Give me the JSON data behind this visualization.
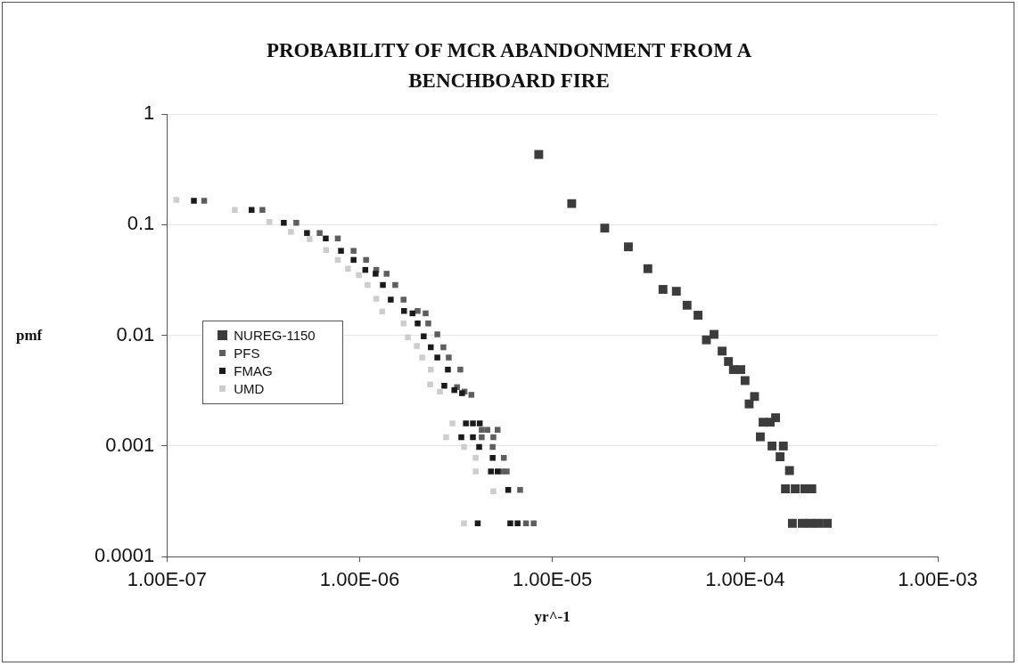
{
  "chart_data": {
    "type": "scatter",
    "title": "PROBABILITY OF MCR ABANDONMENT FROM A BENCHBOARD FIRE",
    "xlabel": "yr^-1",
    "ylabel": "pmf",
    "log": "xy",
    "grid": "y",
    "legend": "left",
    "marker": "square",
    "xlim": [
      1e-07,
      0.001
    ],
    "ylim": [
      0.0001,
      1
    ],
    "xticks": [
      {
        "value": 1e-07,
        "label": "1.00E-07"
      },
      {
        "value": 1e-06,
        "label": "1.00E-06"
      },
      {
        "value": 1e-05,
        "label": "1.00E-05"
      },
      {
        "value": 0.0001,
        "label": "1.00E-04"
      },
      {
        "value": 0.001,
        "label": "1.00E-03"
      }
    ],
    "yticks": [
      0.0001,
      0.001,
      0.01,
      0.1,
      1
    ],
    "series": [
      {
        "name": "NUREG-1150",
        "color": "#3c3c3c",
        "x": [
          8.5e-06,
          1.26e-05,
          1.87e-05,
          2.48e-05,
          3.13e-05,
          3.75e-05,
          4.4e-05,
          5e-05,
          5.7e-05,
          6.9e-05,
          6.3e-05,
          7.6e-05,
          8.2e-05,
          8.7e-05,
          9.5e-05,
          0.0001,
          0.000112,
          0.000105,
          0.000144,
          0.000124,
          0.000135,
          0.00012,
          0.000138,
          0.000158,
          0.000152,
          0.00017,
          0.000162,
          0.000182,
          0.000204,
          0.000222,
          0.000176,
          0.000198,
          0.000218,
          0.00024,
          0.000267
        ],
        "values": [
          0.43,
          0.155,
          0.093,
          0.063,
          0.04,
          0.026,
          0.025,
          0.0187,
          0.0152,
          0.0102,
          0.0091,
          0.0072,
          0.0058,
          0.0049,
          0.0049,
          0.0039,
          0.0028,
          0.0024,
          0.0018,
          0.00164,
          0.00164,
          0.00121,
          0.001,
          0.001,
          0.0008,
          0.0006,
          0.00041,
          0.00041,
          0.00041,
          0.00041,
          0.0002,
          0.0002,
          0.0002,
          0.0002,
          0.0002
        ]
      },
      {
        "name": "PFS",
        "color": "#5e5e5e",
        "x": [
          1.56e-07,
          3.13e-07,
          4.69e-07,
          6.2e-07,
          7.7e-07,
          9.3e-07,
          1.08e-06,
          1.22e-06,
          1.38e-06,
          1.53e-06,
          1.69e-06,
          2e-06,
          2.2e-06,
          2.27e-06,
          2.53e-06,
          2.72e-06,
          2.9e-06,
          3.33e-06,
          3.2e-06,
          3.5e-06,
          3.8e-06,
          4.3e-06,
          4.6e-06,
          5.2e-06,
          4.3e-06,
          4.94e-06,
          4.9e-06,
          5.6e-06,
          5.5e-06,
          5.8e-06,
          6.8e-06,
          7.3e-06,
          8e-06
        ],
        "values": [
          0.164,
          0.136,
          0.104,
          0.084,
          0.075,
          0.058,
          0.048,
          0.039,
          0.036,
          0.0285,
          0.021,
          0.0166,
          0.0158,
          0.0128,
          0.0102,
          0.0078,
          0.0063,
          0.0049,
          0.0034,
          0.0031,
          0.0029,
          0.0014,
          0.0014,
          0.0014,
          0.0012,
          0.0012,
          0.00098,
          0.00078,
          0.00059,
          0.00059,
          0.0004,
          0.0002,
          0.0002
        ]
      },
      {
        "name": "FMAG",
        "color": "#1a1a1a",
        "x": [
          1.38e-07,
          2.75e-07,
          4.04e-07,
          5.33e-07,
          6.67e-07,
          8e-07,
          9.3e-07,
          1.07e-06,
          1.21e-06,
          1.32e-06,
          1.45e-06,
          1.7e-06,
          1.88e-06,
          2e-06,
          2.15e-06,
          2.34e-06,
          2.53e-06,
          2.87e-06,
          2.75e-06,
          3.1e-06,
          3.4e-06,
          3.56e-06,
          3.87e-06,
          4.2e-06,
          3.37e-06,
          3.87e-06,
          4.17e-06,
          4.9e-06,
          4.8e-06,
          5.2e-06,
          5.9e-06,
          4.1e-06,
          6.05e-06,
          6.6e-06
        ],
        "values": [
          0.164,
          0.136,
          0.104,
          0.084,
          0.075,
          0.058,
          0.048,
          0.039,
          0.036,
          0.0285,
          0.021,
          0.0166,
          0.0158,
          0.0128,
          0.0098,
          0.0078,
          0.0063,
          0.0049,
          0.0035,
          0.0032,
          0.003,
          0.0016,
          0.0016,
          0.0016,
          0.0012,
          0.0012,
          0.00098,
          0.00078,
          0.00059,
          0.00059,
          0.0004,
          0.0002,
          0.0002,
          0.0002
        ]
      },
      {
        "name": "UMD",
        "color": "#cdcdcd",
        "x": [
          1.12e-07,
          2.25e-07,
          3.4e-07,
          4.4e-07,
          5.5e-07,
          6.7e-07,
          7.7e-07,
          8.7e-07,
          9.9e-07,
          1.1e-06,
          1.22e-06,
          1.31e-06,
          1.69e-06,
          1.78e-06,
          1.98e-06,
          2.11e-06,
          2.34e-06,
          2.32e-06,
          2.61e-06,
          3.03e-06,
          2.81e-06,
          3.48e-06,
          4e-06,
          4e-06,
          4.94e-06,
          3.48e-06
        ],
        "values": [
          0.167,
          0.136,
          0.106,
          0.086,
          0.074,
          0.059,
          0.048,
          0.04,
          0.035,
          0.0285,
          0.0214,
          0.0164,
          0.0128,
          0.0096,
          0.008,
          0.0063,
          0.0049,
          0.0036,
          0.0031,
          0.0016,
          0.0012,
          0.00098,
          0.00078,
          0.00059,
          0.00039,
          0.0002
        ]
      }
    ]
  }
}
